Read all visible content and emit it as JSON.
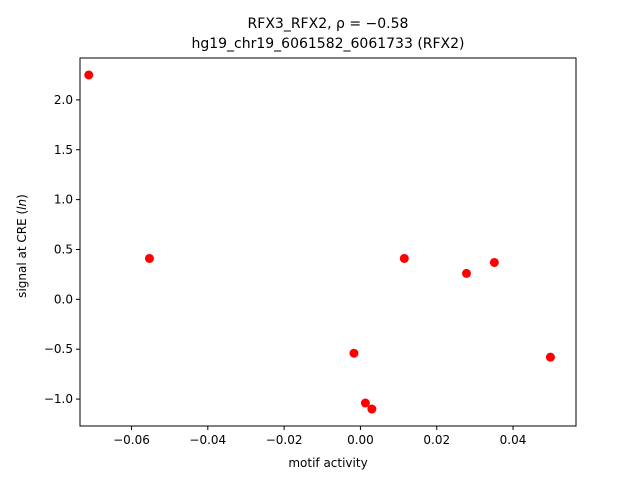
{
  "chart_data": {
    "type": "scatter",
    "title_line1": "RFX3_RFX2, ρ = −0.58",
    "title_line2": "hg19_chr19_6061582_6061733 (RFX2)",
    "xlabel": "motif activity",
    "ylabel_prefix": "signal at CRE (",
    "ylabel_italic": "ln",
    "ylabel_suffix": ")",
    "xlim": [
      -0.0735,
      0.0565
    ],
    "ylim": [
      -1.27,
      2.42
    ],
    "xticks": [
      -0.06,
      -0.04,
      -0.02,
      0.0,
      0.02,
      0.04
    ],
    "xtick_labels": [
      "−0.06",
      "−0.04",
      "−0.02",
      "0.00",
      "0.02",
      "0.04"
    ],
    "yticks": [
      -1.0,
      -0.5,
      0.0,
      0.5,
      1.0,
      1.5,
      2.0
    ],
    "ytick_labels": [
      "−1.0",
      "−0.5",
      "0.0",
      "0.5",
      "1.0",
      "1.5",
      "2.0"
    ],
    "marker_color": "#ff0000",
    "points": [
      {
        "x": -0.0712,
        "y": 2.25
      },
      {
        "x": -0.0553,
        "y": 0.41
      },
      {
        "x": -0.0017,
        "y": -0.54
      },
      {
        "x": 0.0013,
        "y": -1.04
      },
      {
        "x": 0.003,
        "y": -1.1
      },
      {
        "x": 0.0115,
        "y": 0.41
      },
      {
        "x": 0.0278,
        "y": 0.26
      },
      {
        "x": 0.0351,
        "y": 0.37
      },
      {
        "x": 0.0498,
        "y": -0.58
      }
    ]
  }
}
